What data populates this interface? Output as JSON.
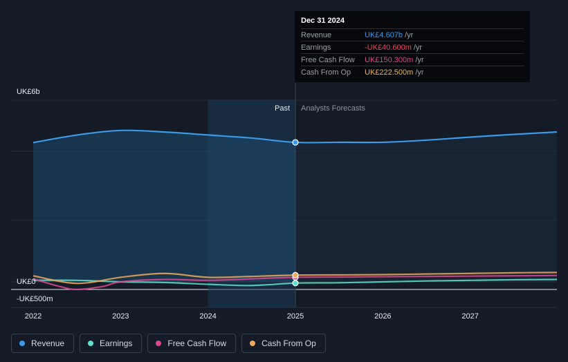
{
  "tooltip": {
    "date": "Dec 31 2024",
    "rows": [
      {
        "label": "Revenue",
        "value": "UK£4.607b",
        "unit": "/yr",
        "color": "#3b9be8"
      },
      {
        "label": "Earnings",
        "value": "-UK£40.600m",
        "unit": "/yr",
        "color": "#e8475e"
      },
      {
        "label": "Free Cash Flow",
        "value": "UK£150.300m",
        "unit": "/yr",
        "color": "#e0458a"
      },
      {
        "label": "Cash From Op",
        "value": "UK£222.500m",
        "unit": "/yr",
        "color": "#f0b45a"
      }
    ]
  },
  "labels": {
    "past": "Past",
    "forecast": "Analysts Forecasts"
  },
  "legend": [
    {
      "label": "Revenue",
      "color": "#3b9be8"
    },
    {
      "label": "Earnings",
      "color": "#5ee0cf"
    },
    {
      "label": "Free Cash Flow",
      "color": "#d9488f"
    },
    {
      "label": "Cash From Op",
      "color": "#eea95a"
    }
  ],
  "chart_data": {
    "type": "line",
    "y_tick_labels": [
      "UK£6b",
      "UK£0",
      "-UK£500m"
    ],
    "y_ticks": [
      6,
      0,
      -0.5
    ],
    "x_tick_labels": [
      "2022",
      "2023",
      "2024",
      "2025",
      "2026",
      "2027"
    ],
    "x_ticks": [
      2022,
      2023,
      2024,
      2025,
      2026,
      2027
    ],
    "xlim": [
      2021.75,
      2028.0
    ],
    "ylim": [
      -0.7,
      6.0
    ],
    "past_end": 2025,
    "highlight_start": 2024,
    "series": [
      {
        "name": "Revenue",
        "color": "#3b9be8",
        "x": [
          2022,
          2022.5,
          2023,
          2023.5,
          2024,
          2024.5,
          2025,
          2025.5,
          2026,
          2026.5,
          2027,
          2027.5,
          2028
        ],
        "y": [
          4.6,
          4.85,
          5.0,
          4.95,
          4.85,
          4.75,
          4.607,
          4.61,
          4.61,
          4.68,
          4.78,
          4.87,
          4.95
        ]
      },
      {
        "name": "Earnings",
        "color": "#5ee0cf",
        "x": [
          2022,
          2022.5,
          2023,
          2023.5,
          2024,
          2024.5,
          2025,
          2025.5,
          2026,
          2026.5,
          2027,
          2027.5,
          2028
        ],
        "y": [
          0.05,
          0.05,
          0.0,
          -0.02,
          -0.08,
          -0.12,
          -0.0406,
          -0.03,
          0.0,
          0.03,
          0.05,
          0.07,
          0.08
        ]
      },
      {
        "name": "Free Cash Flow",
        "color": "#d9488f",
        "x": [
          2022,
          2022.3,
          2022.5,
          2022.8,
          2023,
          2023.5,
          2024,
          2024.5,
          2025,
          2025.5,
          2026,
          2026.5,
          2027,
          2027.5,
          2028
        ],
        "y": [
          0.1,
          -0.15,
          -0.25,
          -0.15,
          0.0,
          0.08,
          0.05,
          0.1,
          0.1503,
          0.16,
          0.17,
          0.18,
          0.19,
          0.2,
          0.21
        ]
      },
      {
        "name": "Cash From Op",
        "color": "#eea95a",
        "x": [
          2022,
          2022.5,
          2023,
          2023.5,
          2024,
          2024.5,
          2025,
          2025.5,
          2026,
          2026.5,
          2027,
          2027.5,
          2028
        ],
        "y": [
          0.2,
          -0.05,
          0.15,
          0.28,
          0.15,
          0.18,
          0.2225,
          0.23,
          0.24,
          0.26,
          0.28,
          0.3,
          0.31
        ]
      }
    ]
  }
}
